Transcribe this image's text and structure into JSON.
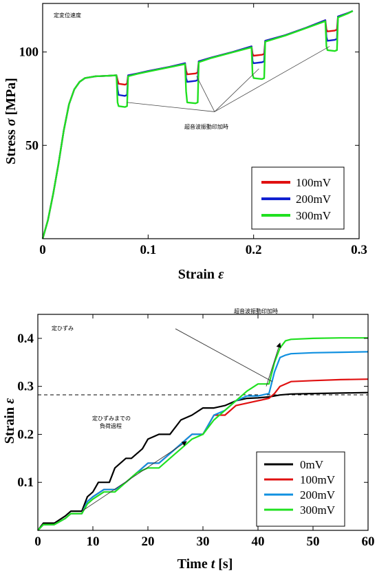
{
  "chart_data": [
    {
      "type": "line",
      "title": "",
      "corner_note": "定変位速度",
      "xlabel_text": "Strain ",
      "xlabel_symbol": "ε",
      "ylabel_text": "Stress ",
      "ylabel_symbol": "σ",
      "ylabel_unit": " [MPa]",
      "xlim": [
        0,
        0.3
      ],
      "ylim": [
        0,
        126
      ],
      "xticks": [
        0,
        0.1,
        0.2,
        0.3
      ],
      "xtick_labels": [
        "0",
        "0.1",
        "0.2",
        "0.3"
      ],
      "yticks": [
        50,
        100
      ],
      "ytick_labels": [
        "50",
        "100"
      ],
      "annotation": "超音波振動印加時",
      "annotation_arrows_to": [
        [
          0.08,
          73
        ],
        [
          0.146,
          87
        ],
        [
          0.205,
          91
        ],
        [
          0.272,
          103
        ]
      ],
      "annotation_point": [
        0.163,
        68
      ],
      "legend": {
        "position": "bottom-right"
      },
      "series": [
        {
          "name": "100mV",
          "color": "#e01010",
          "x": [
            0,
            0.005,
            0.01,
            0.015,
            0.02,
            0.025,
            0.03,
            0.035,
            0.04,
            0.05,
            0.06,
            0.07,
            0.071,
            0.072,
            0.078,
            0.08,
            0.081,
            0.09,
            0.1,
            0.12,
            0.135,
            0.136,
            0.137,
            0.145,
            0.147,
            0.148,
            0.16,
            0.18,
            0.198,
            0.199,
            0.2,
            0.208,
            0.21,
            0.211,
            0.23,
            0.25,
            0.268,
            0.269,
            0.27,
            0.277,
            0.279,
            0.28,
            0.29,
            0.294
          ],
          "y": [
            0,
            10,
            24,
            40,
            58,
            72,
            80,
            84,
            86,
            87,
            87.2,
            87.5,
            85,
            83,
            82.5,
            83,
            87.5,
            88.5,
            89.8,
            92,
            94,
            90,
            88,
            88.5,
            89,
            95,
            97,
            100,
            103,
            99,
            98,
            98.5,
            99,
            106,
            109,
            113,
            117,
            112,
            111,
            111.5,
            112,
            119,
            121,
            122
          ]
        },
        {
          "name": "200mV",
          "color": "#1020d0",
          "x": [
            0,
            0.005,
            0.01,
            0.015,
            0.02,
            0.025,
            0.03,
            0.035,
            0.04,
            0.05,
            0.06,
            0.07,
            0.071,
            0.072,
            0.078,
            0.08,
            0.081,
            0.09,
            0.1,
            0.12,
            0.135,
            0.136,
            0.137,
            0.145,
            0.147,
            0.148,
            0.16,
            0.18,
            0.198,
            0.199,
            0.2,
            0.208,
            0.21,
            0.211,
            0.23,
            0.25,
            0.268,
            0.269,
            0.27,
            0.277,
            0.279,
            0.28,
            0.29,
            0.294
          ],
          "y": [
            0,
            10,
            24,
            40,
            58,
            72,
            80,
            84,
            86,
            87,
            87.2,
            87.5,
            80,
            77,
            76.5,
            77,
            87.5,
            88.5,
            89.8,
            92,
            94,
            86,
            84,
            84.5,
            85,
            95,
            97,
            100,
            103,
            95,
            94,
            94.5,
            95,
            106,
            109,
            113,
            117,
            108,
            106,
            106.5,
            107,
            119,
            121,
            122
          ]
        },
        {
          "name": "300mV",
          "color": "#20e020",
          "x": [
            0,
            0.005,
            0.01,
            0.015,
            0.02,
            0.025,
            0.03,
            0.035,
            0.04,
            0.05,
            0.06,
            0.07,
            0.071,
            0.072,
            0.078,
            0.08,
            0.081,
            0.09,
            0.1,
            0.12,
            0.135,
            0.136,
            0.137,
            0.145,
            0.147,
            0.148,
            0.16,
            0.18,
            0.198,
            0.199,
            0.2,
            0.208,
            0.21,
            0.211,
            0.23,
            0.25,
            0.268,
            0.269,
            0.27,
            0.277,
            0.279,
            0.28,
            0.29,
            0.294
          ],
          "y": [
            0,
            10,
            24,
            40,
            58,
            72,
            80,
            84,
            86,
            87,
            87.2,
            87.5,
            73,
            71,
            70.5,
            71,
            87,
            88.3,
            89.5,
            91.8,
            93.5,
            79,
            73,
            72.5,
            73,
            94.5,
            96.8,
            99.8,
            102.5,
            88,
            86,
            85.5,
            86,
            105.5,
            108.8,
            112.8,
            116.5,
            103,
            101,
            100.5,
            101,
            118.5,
            120.8,
            122
          ]
        }
      ]
    },
    {
      "type": "line",
      "title": "",
      "corner_note": "定ひずみ",
      "top_annotation": "超音波振動印加時",
      "mid_annotation_line1": "定ひずみまでの",
      "mid_annotation_line2": "負荷過程",
      "xlabel_text": "Time ",
      "xlabel_symbol": "t",
      "xlabel_unit": " [s]",
      "ylabel_text": "Strain ",
      "ylabel_symbol": "ε",
      "xlim": [
        0,
        60
      ],
      "ylim": [
        0,
        0.45
      ],
      "xticks": [
        0,
        10,
        20,
        30,
        40,
        50,
        60
      ],
      "xtick_labels": [
        "0",
        "10",
        "20",
        "30",
        "40",
        "50",
        "60"
      ],
      "yticks": [
        0.1,
        0.2,
        0.3,
        0.4
      ],
      "ytick_labels": [
        "0.1",
        "0.2",
        "0.3",
        "0.4"
      ],
      "hline_y": 0.28,
      "legend": {
        "position": "bottom-right"
      },
      "series": [
        {
          "name": "0mV",
          "color": "#000000",
          "x": [
            0,
            1,
            3,
            5,
            6,
            8,
            9,
            10,
            11,
            13,
            14,
            16,
            17,
            19,
            20,
            22,
            24,
            26,
            28,
            30,
            32,
            34,
            36,
            38,
            40,
            42,
            44,
            46,
            50,
            55,
            60
          ],
          "y": [
            0,
            0.015,
            0.015,
            0.03,
            0.04,
            0.04,
            0.07,
            0.08,
            0.1,
            0.1,
            0.13,
            0.15,
            0.15,
            0.17,
            0.19,
            0.2,
            0.2,
            0.23,
            0.24,
            0.255,
            0.255,
            0.26,
            0.27,
            0.275,
            0.276,
            0.278,
            0.282,
            0.284,
            0.285,
            0.286,
            0.287
          ]
        },
        {
          "name": "100mV",
          "color": "#e01010",
          "x": [
            0,
            1,
            3,
            5,
            6,
            8,
            9,
            10,
            12,
            14,
            16,
            17,
            18,
            20,
            22,
            24,
            26,
            28,
            30,
            32,
            34,
            36,
            38,
            40,
            42,
            43,
            44,
            45,
            46,
            50,
            55,
            60
          ],
          "y": [
            0,
            0.012,
            0.012,
            0.025,
            0.035,
            0.035,
            0.06,
            0.07,
            0.085,
            0.085,
            0.1,
            0.11,
            0.12,
            0.14,
            0.14,
            0.16,
            0.18,
            0.2,
            0.2,
            0.24,
            0.24,
            0.26,
            0.265,
            0.27,
            0.275,
            0.285,
            0.3,
            0.305,
            0.31,
            0.312,
            0.314,
            0.315
          ]
        },
        {
          "name": "200mV",
          "color": "#1090e0",
          "x": [
            0,
            1,
            3,
            5,
            6,
            8,
            9,
            10,
            12,
            14,
            16,
            17,
            18,
            20,
            22,
            24,
            26,
            28,
            30,
            32,
            34,
            36,
            38,
            40,
            42,
            43,
            44,
            45,
            46,
            50,
            55,
            60
          ],
          "y": [
            0,
            0.012,
            0.012,
            0.025,
            0.035,
            0.035,
            0.06,
            0.07,
            0.085,
            0.085,
            0.1,
            0.11,
            0.12,
            0.14,
            0.14,
            0.16,
            0.18,
            0.2,
            0.2,
            0.24,
            0.25,
            0.27,
            0.28,
            0.28,
            0.285,
            0.33,
            0.36,
            0.365,
            0.368,
            0.37,
            0.371,
            0.372
          ]
        },
        {
          "name": "300mV",
          "color": "#20e020",
          "x": [
            0,
            1,
            3,
            5,
            6,
            8,
            9,
            10,
            12,
            14,
            16,
            17,
            18,
            20,
            22,
            24,
            26,
            28,
            30,
            32,
            34,
            36,
            38,
            40,
            42,
            43,
            44,
            45,
            46,
            50,
            55,
            60
          ],
          "y": [
            0,
            0.012,
            0.012,
            0.025,
            0.035,
            0.035,
            0.055,
            0.065,
            0.08,
            0.08,
            0.1,
            0.11,
            0.12,
            0.13,
            0.13,
            0.15,
            0.17,
            0.19,
            0.2,
            0.23,
            0.25,
            0.27,
            0.29,
            0.305,
            0.305,
            0.35,
            0.38,
            0.395,
            0.398,
            0.4,
            0.401,
            0.401
          ]
        }
      ]
    }
  ]
}
